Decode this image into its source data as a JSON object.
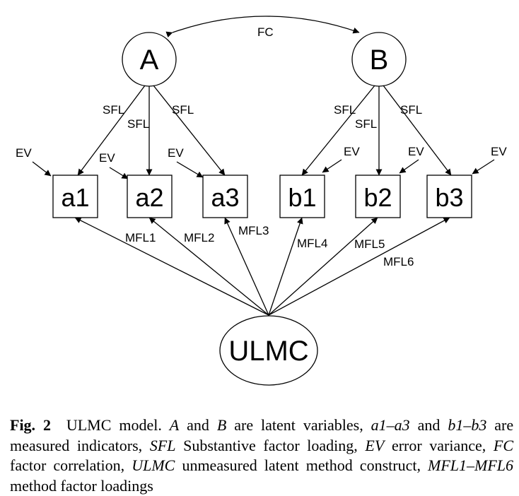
{
  "nodes": {
    "A": "A",
    "B": "B",
    "ULMC": "ULMC",
    "a1": "a1",
    "a2": "a2",
    "a3": "a3",
    "b1": "b1",
    "b2": "b2",
    "b3": "b3"
  },
  "edges": {
    "fc": "FC",
    "sfl": "SFL",
    "ev": "EV",
    "mfl": [
      "MFL1",
      "MFL2",
      "MFL3",
      "MFL4",
      "MFL5",
      "MFL6"
    ]
  },
  "caption": {
    "fig_label": "Fig. 2",
    "s1": "ULMC model.",
    "A": "A",
    "and1": "and",
    "B": "B",
    "s2": "are latent variables,",
    "a_range": "a1–a3",
    "and2": "and",
    "b_range": "b1–b3",
    "s3": "are measured indicators,",
    "sfl": "SFL",
    "s4": "Substantive factor loading,",
    "ev": "EV",
    "s5": "error variance,",
    "fc": "FC",
    "s6": "factor correlation,",
    "ulmc": "ULMC",
    "s7": "unmeasured latent method construct,",
    "mfl_range": "MFL1–MFL6",
    "s8": "method factor loadings"
  }
}
